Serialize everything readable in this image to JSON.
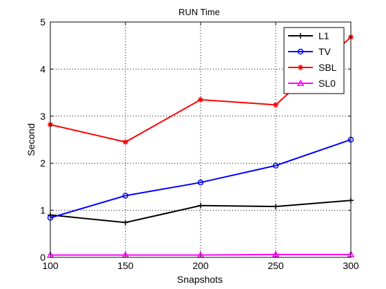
{
  "chart_data": {
    "type": "line",
    "title": "RUN Time",
    "xlabel": "Snapshots",
    "ylabel": "Second",
    "xlim": [
      100,
      300
    ],
    "ylim": [
      0,
      5
    ],
    "xticks": [
      "100",
      "150",
      "200",
      "250",
      "300"
    ],
    "yticks": [
      "0",
      "1",
      "2",
      "3",
      "4",
      "5"
    ],
    "grid": true,
    "grid_style": "dotted",
    "legend_position": "top-right",
    "x": [
      100,
      150,
      200,
      250,
      300
    ],
    "series": [
      {
        "name": "L1",
        "values": [
          0.9,
          0.74,
          1.1,
          1.08,
          1.21
        ],
        "color": "#000000",
        "marker": "plus"
      },
      {
        "name": "TV",
        "values": [
          0.84,
          1.31,
          1.59,
          1.95,
          2.5
        ],
        "color": "#0000ff",
        "marker": "circle"
      },
      {
        "name": "SBL",
        "values": [
          2.82,
          2.45,
          3.35,
          3.24,
          4.68
        ],
        "color": "#ff0000",
        "marker": "star"
      },
      {
        "name": "SL0",
        "values": [
          0.05,
          0.05,
          0.05,
          0.06,
          0.06
        ],
        "color": "#ff00ff",
        "marker": "triangle"
      }
    ]
  }
}
